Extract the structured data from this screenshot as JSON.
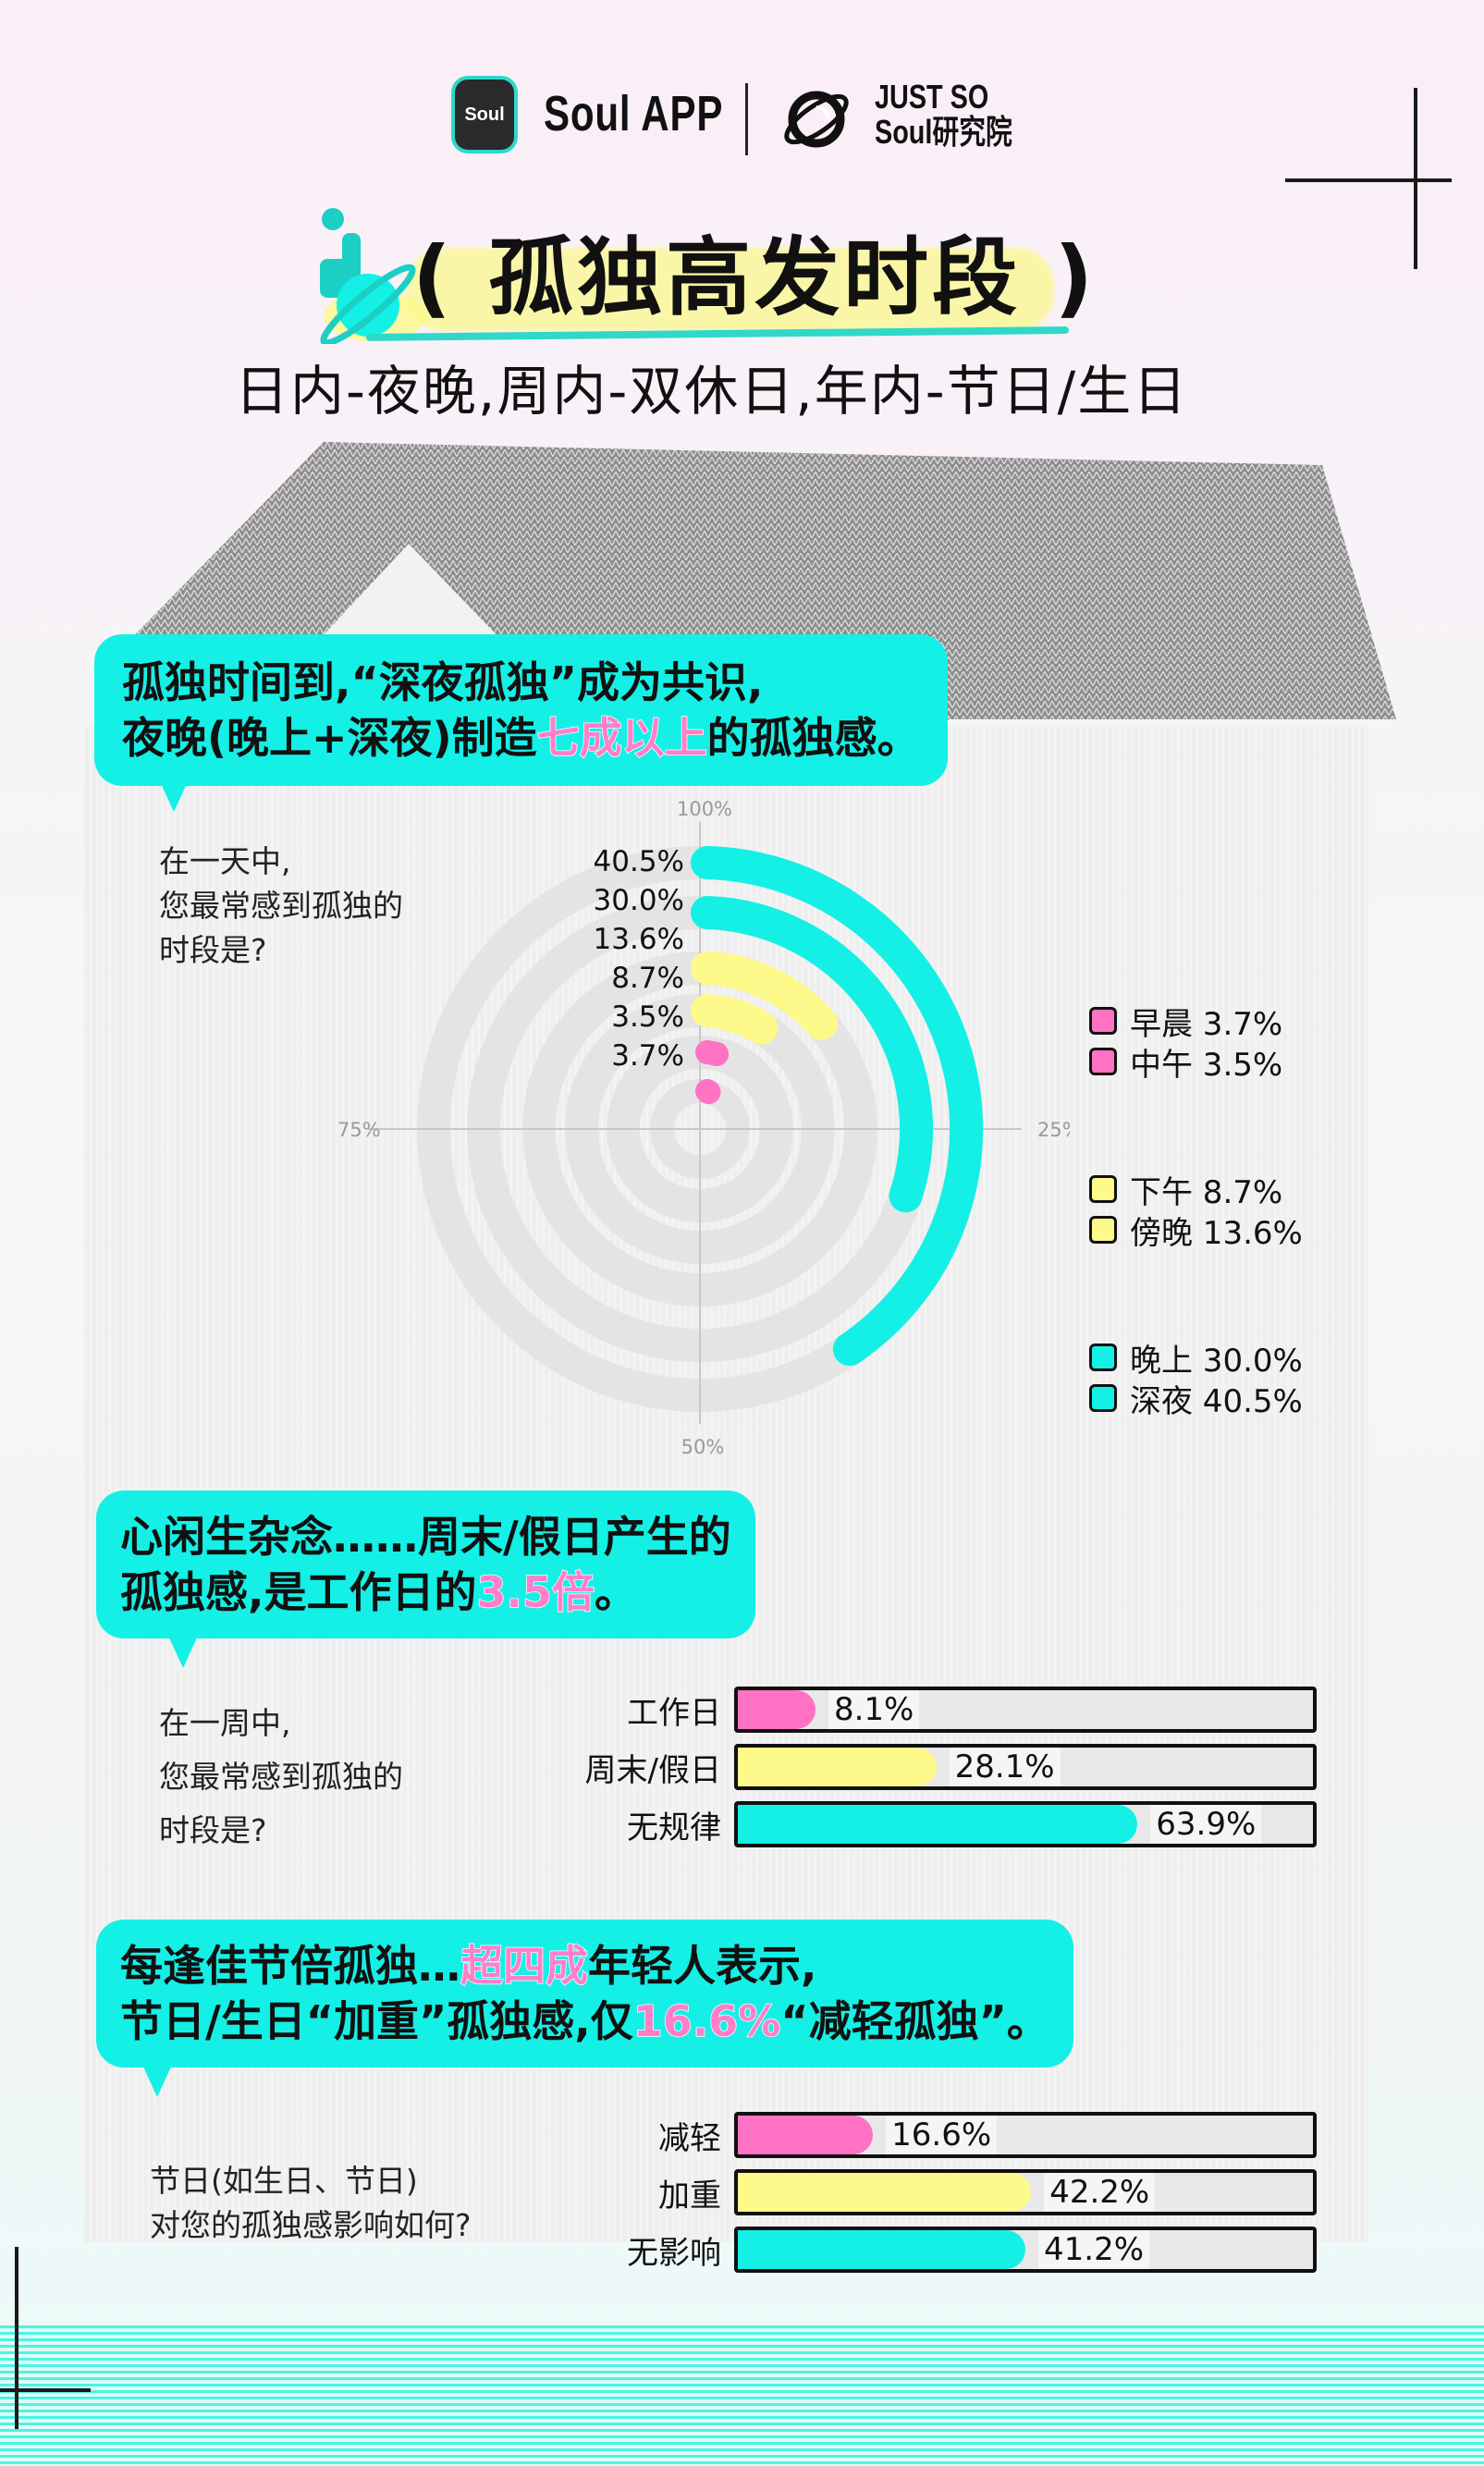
{
  "header": {
    "app_icon_text": "Soul",
    "brand": "Soul APP",
    "partner_line1": "JUST SO",
    "partner_line2": "Soul研究院"
  },
  "title": {
    "main": "( 孤独高发时段 )",
    "subtitle": "日内-夜晚,周内-双休日,年内-节日/生日"
  },
  "colors": {
    "cyan": "#14f0e6",
    "yellow": "#fdf98a",
    "pink": "#ff72c4",
    "track": "#e8e8e8"
  },
  "section1": {
    "bubble_line1": "孤独时间到,“深夜孤独”成为共识,",
    "bubble_line2_pre": "夜晚(晚上+深夜)制造",
    "bubble_line2_hl": "七成以上",
    "bubble_line2_post": "的孤独感。",
    "question": "在一天中,\n您最常感到孤独的\n时段是?",
    "axis_labels": {
      "top": "100%",
      "right": "25%",
      "bottom": "50%",
      "left": "75%"
    },
    "ring_labels": [
      "40.5%",
      "30.0%",
      "13.6%",
      "8.7%",
      "3.5%",
      "3.7%"
    ],
    "legend": [
      {
        "label": "早晨 3.7%",
        "color": "#ff72c4"
      },
      {
        "label": "中午 3.5%",
        "color": "#ff72c4"
      },
      {
        "label": "下午 8.7%",
        "color": "#fdf98a"
      },
      {
        "label": "傍晚 13.6%",
        "color": "#fdf98a"
      },
      {
        "label": "晚上 30.0%",
        "color": "#14f0e6"
      },
      {
        "label": "深夜 40.5%",
        "color": "#14f0e6"
      }
    ]
  },
  "section2": {
    "bubble_line1": "心闲生杂念……周末/假日产生的",
    "bubble_line2_pre": "孤独感,是工作日的",
    "bubble_line2_hl": "3.5倍",
    "bubble_line2_post": "。",
    "question": "在一周中,\n您最常感到孤独的\n时段是?",
    "bars": [
      {
        "label": "工作日",
        "value": "8.1%",
        "fill": 0.135,
        "color": "#ff72c4"
      },
      {
        "label": "周末/假日",
        "value": "28.1%",
        "fill": 0.345,
        "color": "#fdf98a"
      },
      {
        "label": "无规律",
        "value": "63.9%",
        "fill": 0.695,
        "color": "#14f0e6"
      }
    ]
  },
  "section3": {
    "bubble_line1_pre": "每逢佳节倍孤独…",
    "bubble_line1_hl": "超四成",
    "bubble_line1_post": "年轻人表示,",
    "bubble_line2_pre": "节日/生日“加重”孤独感,仅",
    "bubble_line2_hl": "16.6%",
    "bubble_line2_post": "“减轻孤独”。",
    "question": "节日(如生日、节日)\n对您的孤独感影响如何?",
    "bars": [
      {
        "label": "减轻",
        "value": "16.6%",
        "fill": 0.235,
        "color": "#ff72c4"
      },
      {
        "label": "加重",
        "value": "42.2%",
        "fill": 0.51,
        "color": "#fdf98a"
      },
      {
        "label": "无影响",
        "value": "41.2%",
        "fill": 0.5,
        "color": "#14f0e6"
      }
    ]
  },
  "chart_data": [
    {
      "type": "radial-bar",
      "title": "在一天中,您最常感到孤独的时段是?",
      "categories": [
        "深夜",
        "晚上",
        "傍晚",
        "下午",
        "中午",
        "早晨"
      ],
      "values": [
        40.5,
        30.0,
        13.6,
        8.7,
        3.5,
        3.7
      ],
      "colors": [
        "#14f0e6",
        "#14f0e6",
        "#fdf98a",
        "#fdf98a",
        "#ff72c4",
        "#ff72c4"
      ],
      "axis_ticks": [
        "100%",
        "25%",
        "50%",
        "75%"
      ],
      "ylim": [
        0,
        100
      ]
    },
    {
      "type": "bar",
      "orientation": "horizontal",
      "title": "在一周中,您最常感到孤独的时段是?",
      "categories": [
        "工作日",
        "周末/假日",
        "无规律"
      ],
      "values": [
        8.1,
        28.1,
        63.9
      ]
    },
    {
      "type": "bar",
      "orientation": "horizontal",
      "title": "节日(如生日、节日)对您的孤独感影响如何?",
      "categories": [
        "减轻",
        "加重",
        "无影响"
      ],
      "values": [
        16.6,
        42.2,
        41.2
      ]
    }
  ]
}
